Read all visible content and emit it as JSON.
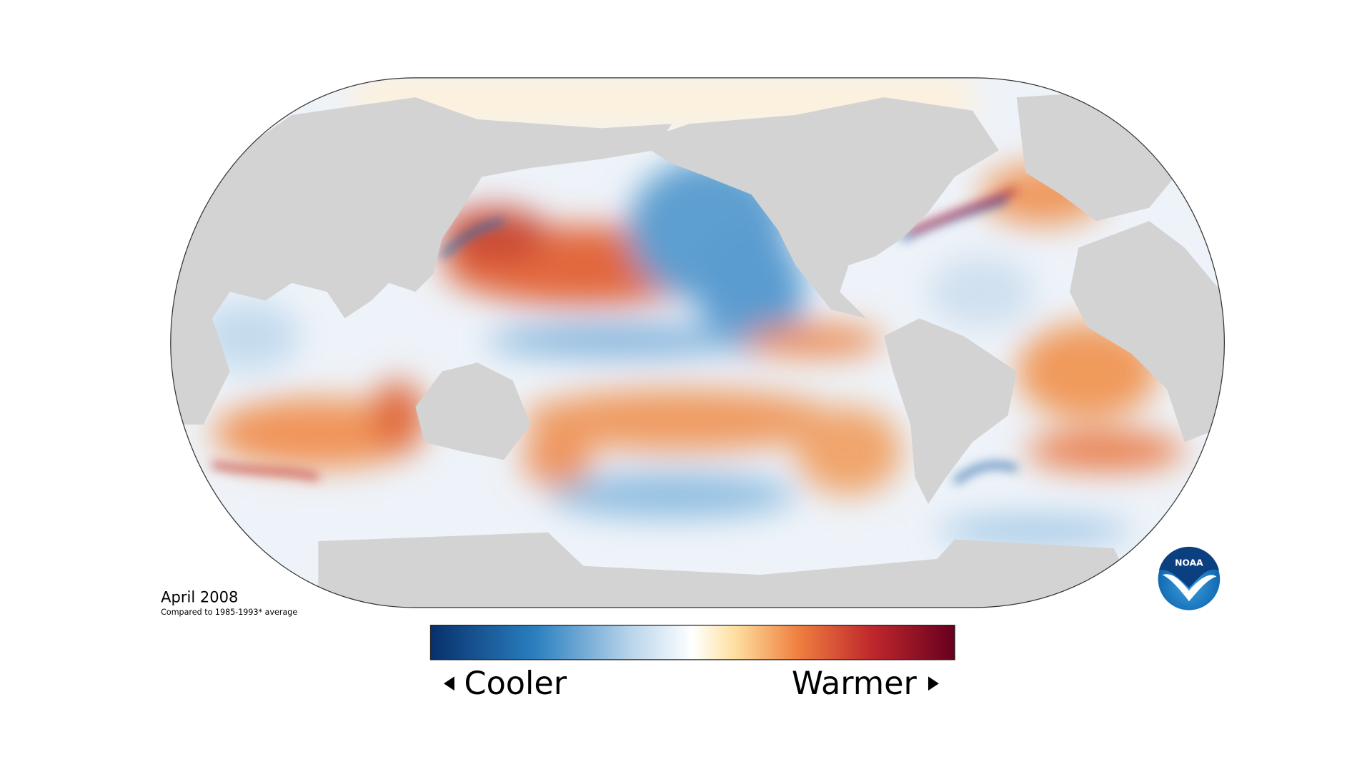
{
  "caption": {
    "title": "April 2008",
    "subtitle": "Compared to 1985-1993* average"
  },
  "legend": {
    "low_label": "Cooler",
    "high_label": "Warmer"
  },
  "logo": {
    "text": "NOAA"
  }
}
